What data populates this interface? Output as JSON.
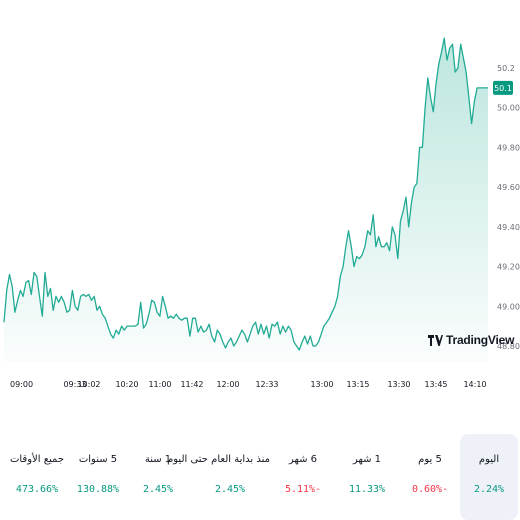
{
  "chart_data": {
    "type": "area",
    "title": "",
    "xlabel": "",
    "ylabel": "",
    "y_ticks": [
      "50.2",
      "50.00",
      "49.80",
      "49.60",
      "49.40",
      "49.20",
      "49.00",
      "48.80"
    ],
    "y_tick_values": [
      50.2,
      50.0,
      49.8,
      49.6,
      49.4,
      49.2,
      49.0,
      48.8
    ],
    "ylim": [
      48.73,
      50.36
    ],
    "x_ticks": [
      "09:00",
      "09:33",
      "10:02",
      "10:20",
      "11:00",
      "11:42",
      "12:00",
      "12:33",
      "13:00",
      "13:15",
      "13:30",
      "13:45",
      "14:10"
    ],
    "last_value_label": "50.1",
    "line_color": "#22ab94",
    "fill_color": "#cdeee5",
    "grid": false,
    "series": [
      {
        "values": [
          48.92,
          49.08,
          49.16,
          49.1,
          48.97,
          49.03,
          49.08,
          49.05,
          49.12,
          49.13,
          49.06,
          49.17,
          49.15,
          49.05,
          48.95,
          49.17,
          49.05,
          49.09,
          48.98,
          49.05,
          49.02,
          49.05,
          49.02,
          48.97,
          48.98,
          49.08,
          49.0,
          48.98,
          49.05,
          49.06,
          49.05,
          49.06,
          49.03,
          49.05,
          48.98,
          49.0,
          48.96,
          48.94,
          48.9,
          48.86,
          48.84,
          48.88,
          48.86,
          48.9,
          48.88,
          48.9,
          48.9,
          48.9,
          48.9,
          48.91,
          49.02,
          48.89,
          48.91,
          48.96,
          49.03,
          49.02,
          48.97,
          48.95,
          49.05,
          49.0,
          48.94,
          48.95,
          48.94,
          48.96,
          48.94,
          48.93,
          48.94,
          48.94,
          48.85,
          48.94,
          48.94,
          48.87,
          48.9,
          48.87,
          48.88,
          48.91,
          48.85,
          48.82,
          48.88,
          48.86,
          48.82,
          48.79,
          48.82,
          48.84,
          48.8,
          48.82,
          48.85,
          48.88,
          48.86,
          48.82,
          48.86,
          48.9,
          48.92,
          48.86,
          48.91,
          48.86,
          48.9,
          48.84,
          48.91,
          48.9,
          48.92,
          48.86,
          48.9,
          48.87,
          48.9,
          48.88,
          48.82,
          48.8,
          48.78,
          48.82,
          48.85,
          48.81,
          48.85,
          48.8,
          48.8,
          48.82,
          48.86,
          48.9,
          48.92,
          48.94,
          48.97,
          49.0,
          49.05,
          49.15,
          49.2,
          49.3,
          49.38,
          49.3,
          49.2,
          49.25,
          49.24,
          49.26,
          49.3,
          49.38,
          49.36,
          49.46,
          49.3,
          49.35,
          49.3,
          49.3,
          49.32,
          49.28,
          49.4,
          49.36,
          49.24,
          49.43,
          49.48,
          49.55,
          49.4,
          49.52,
          49.6,
          49.62,
          49.8,
          49.8,
          50.0,
          50.15,
          50.05,
          49.98,
          50.12,
          50.22,
          50.28,
          50.35,
          50.24,
          50.3,
          50.32,
          50.18,
          50.2,
          50.32,
          50.25,
          50.18,
          50.05,
          49.92,
          50.03,
          50.1,
          50.1,
          50.1,
          50.1,
          50.1
        ]
      }
    ]
  },
  "brand": {
    "logo_text": "TradingView"
  },
  "periods": [
    {
      "label": "جميع الأوقات",
      "value": "473.66%",
      "trend": "up",
      "active": false
    },
    {
      "label": "5 سنوات",
      "value": "130.88%",
      "trend": "up",
      "active": false
    },
    {
      "label": "1 سنة",
      "value": "2.45%",
      "trend": "up",
      "active": false
    },
    {
      "label": "منذ بداية العام حتى اليوم",
      "value": "2.45%",
      "trend": "up",
      "active": false
    },
    {
      "label": "6 شهر",
      "value": "5.11%-",
      "trend": "down",
      "active": false
    },
    {
      "label": "1 شهر",
      "value": "11.33%",
      "trend": "up",
      "active": false
    },
    {
      "label": "5 يوم",
      "value": "0.60%-",
      "trend": "down",
      "active": false
    },
    {
      "label": "اليوم",
      "value": "2.24%",
      "trend": "up",
      "active": true
    }
  ]
}
